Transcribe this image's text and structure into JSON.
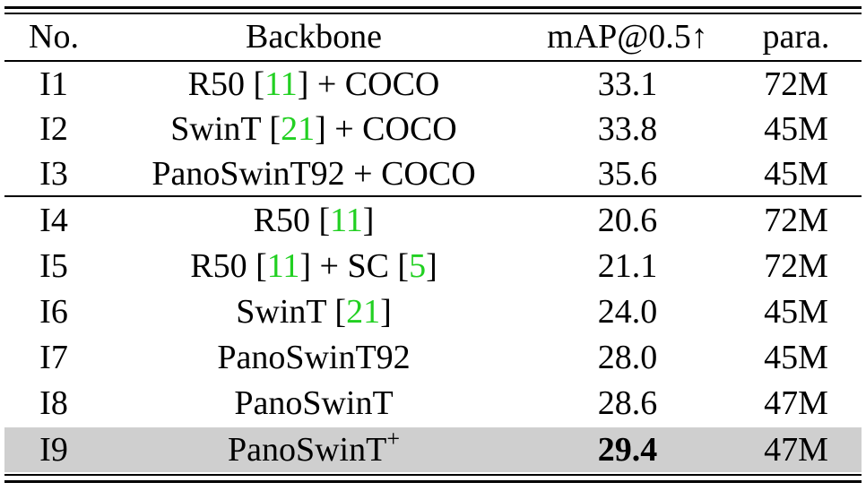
{
  "table": {
    "headers": {
      "no": "No.",
      "backbone": "Backbone",
      "map": "mAP@0.5↑",
      "para": "para."
    },
    "rows": [
      {
        "no": "I1",
        "backbone": {
          "before": "R50 [",
          "cite1": "11",
          "after1": "] + COCO",
          "cite2": "",
          "after2": "",
          "sup": ""
        },
        "map": "33.1",
        "para": "72M"
      },
      {
        "no": "I2",
        "backbone": {
          "before": "SwinT [",
          "cite1": "21",
          "after1": "] + COCO",
          "cite2": "",
          "after2": "",
          "sup": ""
        },
        "map": "33.8",
        "para": "45M"
      },
      {
        "no": "I3",
        "backbone": {
          "before": "PanoSwinT92 + COCO",
          "cite1": "",
          "after1": "",
          "cite2": "",
          "after2": "",
          "sup": ""
        },
        "map": "35.6",
        "para": "45M"
      },
      {
        "no": "I4",
        "backbone": {
          "before": "R50 [",
          "cite1": "11",
          "after1": "]",
          "cite2": "",
          "after2": "",
          "sup": ""
        },
        "map": "20.6",
        "para": "72M"
      },
      {
        "no": "I5",
        "backbone": {
          "before": "R50 [",
          "cite1": "11",
          "after1": "] + SC [",
          "cite2": "5",
          "after2": "]",
          "sup": ""
        },
        "map": "21.1",
        "para": "72M"
      },
      {
        "no": "I6",
        "backbone": {
          "before": "SwinT [",
          "cite1": "21",
          "after1": "]",
          "cite2": "",
          "after2": "",
          "sup": ""
        },
        "map": "24.0",
        "para": "45M"
      },
      {
        "no": "I7",
        "backbone": {
          "before": "PanoSwinT92",
          "cite1": "",
          "after1": "",
          "cite2": "",
          "after2": "",
          "sup": ""
        },
        "map": "28.0",
        "para": "45M"
      },
      {
        "no": "I8",
        "backbone": {
          "before": "PanoSwinT",
          "cite1": "",
          "after1": "",
          "cite2": "",
          "after2": "",
          "sup": ""
        },
        "map": "28.6",
        "para": "47M"
      },
      {
        "no": "I9",
        "backbone": {
          "before": "PanoSwinT",
          "cite1": "",
          "after1": "",
          "cite2": "",
          "after2": "",
          "sup": "+"
        },
        "map": "29.4",
        "para": "47M"
      }
    ],
    "highlight_row": "I9",
    "highlight_color": "#cfcfcf",
    "citation_color": "#22d022",
    "bold_value": "29.4"
  }
}
